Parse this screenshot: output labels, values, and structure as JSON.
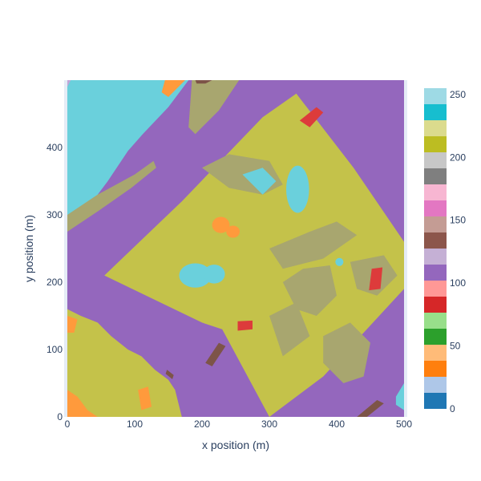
{
  "chart_data": {
    "type": "heatmap",
    "title": "",
    "xlabel": "x position (m)",
    "ylabel": "y position (m)",
    "xlim": [
      0,
      500
    ],
    "ylim": [
      0,
      500
    ],
    "x_ticks": [
      0,
      100,
      200,
      300,
      400,
      500
    ],
    "y_ticks": [
      0,
      100,
      200,
      300,
      400
    ],
    "colorbar": {
      "range": [
        0,
        255
      ],
      "ticks": [
        0,
        50,
        100,
        150,
        200,
        250
      ],
      "colors": [
        "#1f77b4",
        "#aec7e8",
        "#ff7f0e",
        "#ffbb78",
        "#2ca02c",
        "#98df8a",
        "#d62728",
        "#ff9896",
        "#9467bd",
        "#c5b0d5",
        "#8c564b",
        "#c49c94",
        "#e377c2",
        "#f7b6d2",
        "#7f7f7f",
        "#c7c7c7",
        "#bcbd22",
        "#dbdb8d",
        "#17becf",
        "#9edae5"
      ]
    },
    "grid": false,
    "legend": "none",
    "regions": {
      "background": {
        "value": 110,
        "color": "#9467bd"
      },
      "vegetation": {
        "value": 205,
        "color": "#c4c24a"
      },
      "grass": {
        "value": 215,
        "color": "#a8a66f"
      },
      "water": {
        "value": 245,
        "color": "#6ad0dc"
      },
      "orange": {
        "value": 28,
        "color": "#ff9a3c"
      },
      "red": {
        "value": 95,
        "color": "#dd3b3b"
      },
      "brown": {
        "value": 140,
        "color": "#7d5448"
      },
      "lavender": {
        "value": 122,
        "color": "#c0a6d8"
      }
    }
  }
}
